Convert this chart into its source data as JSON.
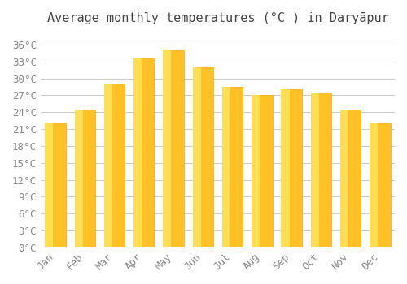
{
  "title": "Average monthly temperatures (°C ) in Daryāpur",
  "months": [
    "Jan",
    "Feb",
    "Mar",
    "Apr",
    "May",
    "Jun",
    "Jul",
    "Aug",
    "Sep",
    "Oct",
    "Nov",
    "Dec"
  ],
  "values": [
    22.0,
    24.5,
    29.0,
    33.5,
    35.0,
    32.0,
    28.5,
    27.0,
    28.0,
    27.5,
    24.5,
    22.0
  ],
  "bar_color_main": "#FFC125",
  "bar_color_edge": "#FFA500",
  "bar_gradient_top": "#FFDD55",
  "ylim": [
    0,
    38
  ],
  "ytick_step": 3,
  "background_color": "#FFFFFF",
  "grid_color": "#CCCCCC",
  "title_fontsize": 11,
  "tick_fontsize": 9,
  "font_family": "monospace"
}
